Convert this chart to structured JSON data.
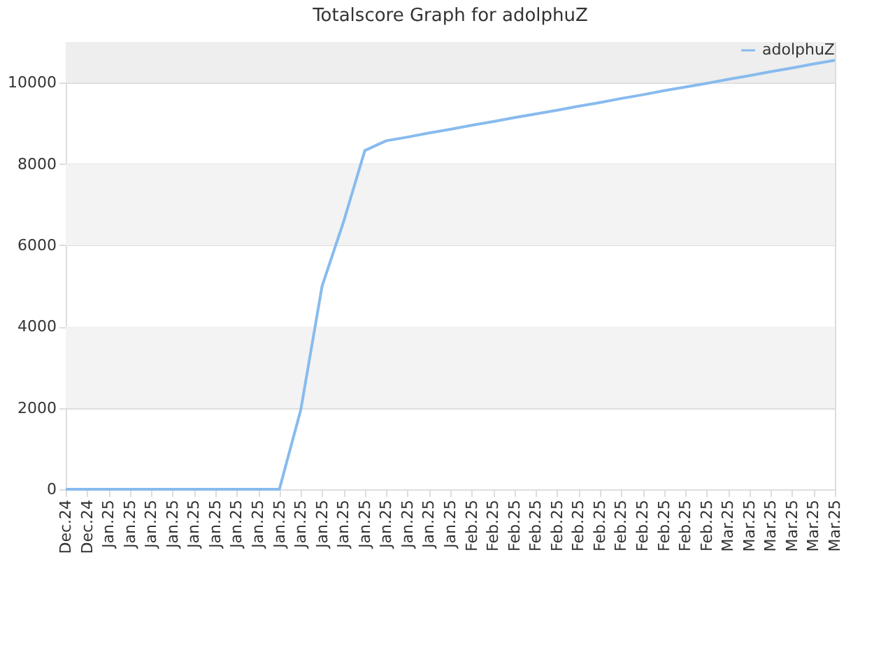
{
  "chart_data": {
    "type": "line",
    "title": "Totalscore Graph for adolphuZ",
    "categories": [
      "Dec.24",
      "Dec.24",
      "Jan.25",
      "Jan.25",
      "Jan.25",
      "Jan.25",
      "Jan.25",
      "Jan.25",
      "Jan.25",
      "Jan.25",
      "Jan.25",
      "Jan.25",
      "Jan.25",
      "Jan.25",
      "Jan.25",
      "Jan.25",
      "Jan.25",
      "Jan.25",
      "Jan.25",
      "Feb.25",
      "Feb.25",
      "Feb.25",
      "Feb.25",
      "Feb.25",
      "Feb.25",
      "Feb.25",
      "Feb.25",
      "Feb.25",
      "Feb.25",
      "Feb.25",
      "Feb.25",
      "Mar.25",
      "Mar.25",
      "Mar.25",
      "Mar.25",
      "Mar.25",
      "Mar.25"
    ],
    "series": [
      {
        "name": "adolphuZ",
        "color": "#88bbee",
        "values": [
          0,
          0,
          0,
          0,
          0,
          0,
          0,
          0,
          0,
          0,
          0,
          1950,
          5000,
          6570,
          8330,
          8570,
          8660,
          8760,
          8850,
          8950,
          9040,
          9140,
          9230,
          9320,
          9420,
          9510,
          9610,
          9700,
          9800,
          9890,
          9980,
          10080,
          10170,
          10270,
          10360,
          10460,
          10550
        ]
      }
    ],
    "ylim": [
      0,
      11000
    ],
    "yticks": [
      0,
      2000,
      4000,
      6000,
      8000,
      10000
    ],
    "grid": "y",
    "legend": "top right",
    "marker": "none",
    "line_style": "solid",
    "bands": [
      {
        "axis": "y",
        "from": 2000,
        "to": 4000,
        "color": "#f3f3f3"
      },
      {
        "axis": "y",
        "from": 6000,
        "to": 8000,
        "color": "#f3f3f3"
      },
      {
        "axis": "y",
        "from": 10000,
        "to": 11000,
        "color": "#eeeeee"
      }
    ]
  }
}
